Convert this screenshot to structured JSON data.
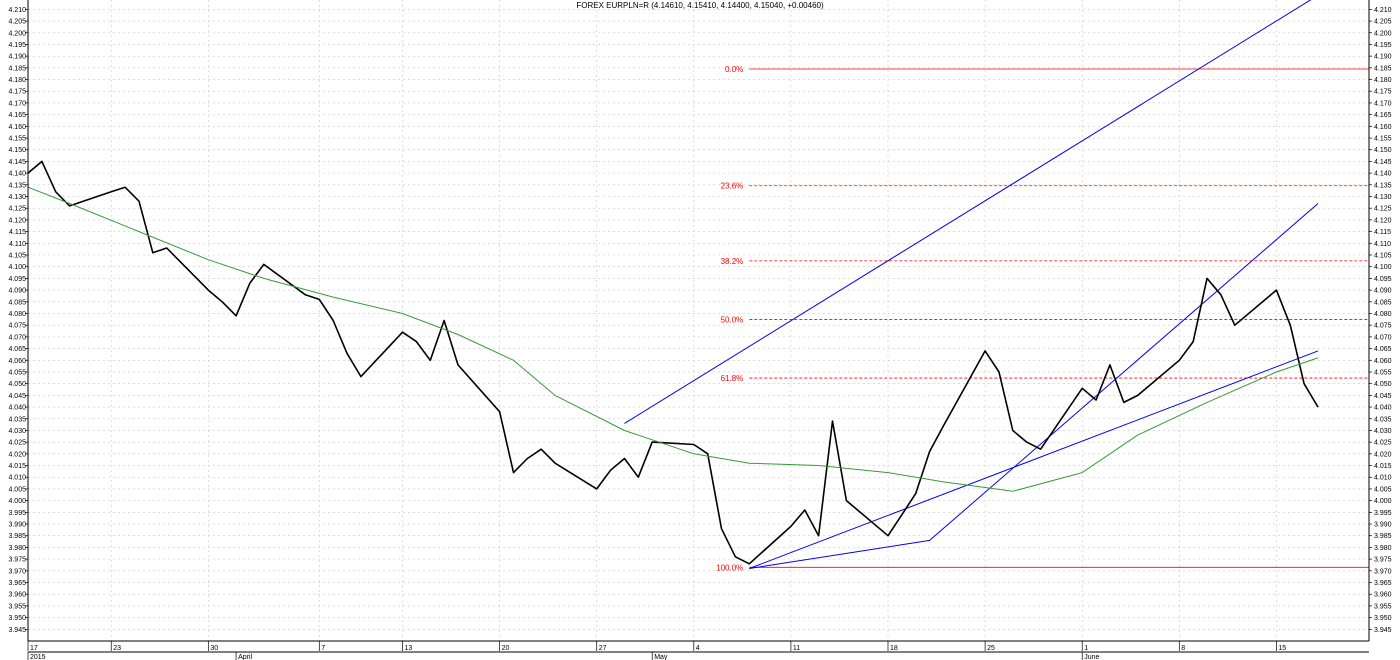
{
  "chart_data": {
    "type": "line",
    "title": "FOREX EURPLN=R (4.14610, 4.15410, 4.14400, 4.15040, +0.00460)",
    "y_axis": {
      "min": 3.94,
      "max": 4.214,
      "step": 0.005,
      "ticks": [
        3.945,
        3.95,
        3.955,
        3.96,
        3.965,
        3.97,
        3.975,
        3.98,
        3.985,
        3.99,
        3.995,
        4.0,
        4.005,
        4.01,
        4.015,
        4.02,
        4.025,
        4.03,
        4.035,
        4.04,
        4.045,
        4.05,
        4.055,
        4.06,
        4.065,
        4.07,
        4.075,
        4.08,
        4.085,
        4.09,
        4.095,
        4.1,
        4.105,
        4.11,
        4.115,
        4.12,
        4.125,
        4.13,
        4.135,
        4.14,
        4.145,
        4.15,
        4.155,
        4.16,
        4.165,
        4.17,
        4.175,
        4.18,
        4.185,
        4.19,
        4.195,
        4.2,
        4.205,
        4.21
      ],
      "label_decimals": 3,
      "sides": "both"
    },
    "x_axis": {
      "range": [
        "2015-03-17",
        "2015-06-18"
      ],
      "day_labels": [
        {
          "date": "2015-03-17",
          "label": "17"
        },
        {
          "date": "2015-03-23",
          "label": "23"
        },
        {
          "date": "2015-03-30",
          "label": "30"
        },
        {
          "date": "2015-04-07",
          "label": "7"
        },
        {
          "date": "2015-04-13",
          "label": "13"
        },
        {
          "date": "2015-04-20",
          "label": "20"
        },
        {
          "date": "2015-04-27",
          "label": "27"
        },
        {
          "date": "2015-05-04",
          "label": "4"
        },
        {
          "date": "2015-05-11",
          "label": "11"
        },
        {
          "date": "2015-05-18",
          "label": "18"
        },
        {
          "date": "2015-05-25",
          "label": "25"
        },
        {
          "date": "2015-06-01",
          "label": "1"
        },
        {
          "date": "2015-06-08",
          "label": "8"
        },
        {
          "date": "2015-06-15",
          "label": "15"
        }
      ],
      "period_labels": [
        {
          "date": "2015-03-17",
          "label": "2015"
        },
        {
          "date": "2015-04-01",
          "label": "April"
        },
        {
          "date": "2015-05-01",
          "label": "May"
        },
        {
          "date": "2015-06-01",
          "label": "June"
        }
      ]
    },
    "grid": true,
    "series": [
      {
        "role": "price",
        "color": "#000000",
        "points": [
          [
            "2015-03-17",
            4.14
          ],
          [
            "2015-03-18",
            4.145
          ],
          [
            "2015-03-19",
            4.132
          ],
          [
            "2015-03-20",
            4.126
          ],
          [
            "2015-03-23",
            4.132
          ],
          [
            "2015-03-24",
            4.134
          ],
          [
            "2015-03-25",
            4.128
          ],
          [
            "2015-03-26",
            4.106
          ],
          [
            "2015-03-27",
            4.108
          ],
          [
            "2015-03-30",
            4.09
          ],
          [
            "2015-03-31",
            4.085
          ],
          [
            "2015-04-01",
            4.079
          ],
          [
            "2015-04-02",
            4.093
          ],
          [
            "2015-04-03",
            4.101
          ],
          [
            "2015-04-06",
            4.088
          ],
          [
            "2015-04-07",
            4.086
          ],
          [
            "2015-04-08",
            4.077
          ],
          [
            "2015-04-09",
            4.063
          ],
          [
            "2015-04-10",
            4.053
          ],
          [
            "2015-04-13",
            4.072
          ],
          [
            "2015-04-14",
            4.068
          ],
          [
            "2015-04-15",
            4.06
          ],
          [
            "2015-04-16",
            4.077
          ],
          [
            "2015-04-17",
            4.058
          ],
          [
            "2015-04-20",
            4.038
          ],
          [
            "2015-04-21",
            4.012
          ],
          [
            "2015-04-22",
            4.018
          ],
          [
            "2015-04-23",
            4.022
          ],
          [
            "2015-04-24",
            4.016
          ],
          [
            "2015-04-27",
            4.005
          ],
          [
            "2015-04-28",
            4.013
          ],
          [
            "2015-04-29",
            4.018
          ],
          [
            "2015-04-30",
            4.01
          ],
          [
            "2015-05-01",
            4.025
          ],
          [
            "2015-05-04",
            4.024
          ],
          [
            "2015-05-05",
            4.02
          ],
          [
            "2015-05-06",
            3.988
          ],
          [
            "2015-05-07",
            3.976
          ],
          [
            "2015-05-08",
            3.973
          ],
          [
            "2015-05-11",
            3.989
          ],
          [
            "2015-05-12",
            3.996
          ],
          [
            "2015-05-13",
            3.985
          ],
          [
            "2015-05-14",
            4.034
          ],
          [
            "2015-05-15",
            4.0
          ],
          [
            "2015-05-18",
            3.985
          ],
          [
            "2015-05-19",
            3.994
          ],
          [
            "2015-05-20",
            4.003
          ],
          [
            "2015-05-21",
            4.021
          ],
          [
            "2015-05-22",
            4.032
          ],
          [
            "2015-05-25",
            4.064
          ],
          [
            "2015-05-26",
            4.055
          ],
          [
            "2015-05-27",
            4.03
          ],
          [
            "2015-05-28",
            4.025
          ],
          [
            "2015-05-29",
            4.022
          ],
          [
            "2015-06-01",
            4.048
          ],
          [
            "2015-06-02",
            4.043
          ],
          [
            "2015-06-03",
            4.058
          ],
          [
            "2015-06-04",
            4.042
          ],
          [
            "2015-06-05",
            4.045
          ],
          [
            "2015-06-08",
            4.06
          ],
          [
            "2015-06-09",
            4.068
          ],
          [
            "2015-06-10",
            4.095
          ],
          [
            "2015-06-11",
            4.088
          ],
          [
            "2015-06-12",
            4.075
          ],
          [
            "2015-06-15",
            4.09
          ],
          [
            "2015-06-16",
            4.075
          ],
          [
            "2015-06-17",
            4.05
          ],
          [
            "2015-06-18",
            4.04
          ]
        ]
      },
      {
        "role": "moving-average",
        "color": "#3a9a3a",
        "points": [
          [
            "2015-03-17",
            4.134
          ],
          [
            "2015-03-20",
            4.127
          ],
          [
            "2015-03-25",
            4.115
          ],
          [
            "2015-03-30",
            4.103
          ],
          [
            "2015-04-03",
            4.095
          ],
          [
            "2015-04-08",
            4.087
          ],
          [
            "2015-04-13",
            4.08
          ],
          [
            "2015-04-17",
            4.071
          ],
          [
            "2015-04-21",
            4.06
          ],
          [
            "2015-04-24",
            4.045
          ],
          [
            "2015-04-29",
            4.03
          ],
          [
            "2015-05-04",
            4.02
          ],
          [
            "2015-05-08",
            4.016
          ],
          [
            "2015-05-13",
            4.015
          ],
          [
            "2015-05-18",
            4.012
          ],
          [
            "2015-05-22",
            4.008
          ],
          [
            "2015-05-27",
            4.004
          ],
          [
            "2015-06-01",
            4.012
          ],
          [
            "2015-06-05",
            4.028
          ],
          [
            "2015-06-10",
            4.042
          ],
          [
            "2015-06-15",
            4.055
          ],
          [
            "2015-06-18",
            4.061
          ]
        ]
      }
    ],
    "fibonacci": {
      "color": "#ff0000",
      "levels": [
        {
          "label": "0.0%",
          "value": 4.1845,
          "style": "solid"
        },
        {
          "label": "23.6%",
          "value": 4.1346,
          "style": "dashed"
        },
        {
          "label": "38.2%",
          "value": 4.1025,
          "style": "dashed"
        },
        {
          "label": "50.0%",
          "value": 4.0774,
          "style": "dashed"
        },
        {
          "label": "61.8%",
          "value": 4.0524,
          "style": "dashed"
        },
        {
          "label": "100.0%",
          "value": 3.9715,
          "style": "solid"
        }
      ]
    },
    "trendlines": {
      "color": "#0000ee",
      "lines": [
        {
          "from": [
            "2015-04-29",
            4.033
          ],
          "to": [
            "2015-06-18",
            4.216
          ]
        },
        {
          "from": [
            "2015-05-08",
            3.971
          ],
          "to": [
            "2015-05-21",
            3.983
          ]
        },
        {
          "from": [
            "2015-05-21",
            3.983
          ],
          "to": [
            "2015-06-18",
            4.127
          ]
        },
        {
          "from": [
            "2015-05-08",
            3.971
          ],
          "to": [
            "2015-06-18",
            4.064
          ]
        }
      ]
    }
  }
}
